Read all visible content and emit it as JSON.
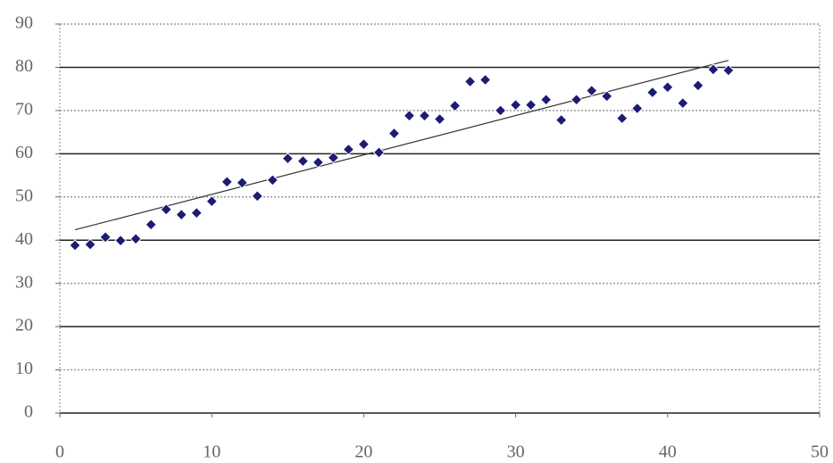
{
  "chart_data": {
    "type": "scatter",
    "x": [
      1,
      2,
      3,
      4,
      5,
      6,
      7,
      8,
      9,
      10,
      11,
      12,
      13,
      14,
      15,
      16,
      17,
      18,
      19,
      20,
      21,
      22,
      23,
      24,
      25,
      26,
      27,
      28,
      29,
      30,
      31,
      32,
      33,
      34,
      35,
      36,
      37,
      38,
      39,
      40,
      41,
      42,
      43,
      44
    ],
    "series": [
      {
        "color": "#1c1c72",
        "values": [
          38.8,
          39,
          40.7,
          39.9,
          40.3,
          43.6,
          47.1,
          45.9,
          46.3,
          49,
          53.5,
          53.3,
          50.2,
          53.9,
          58.9,
          58.3,
          58,
          59.1,
          61,
          62.2,
          60.3,
          64.7,
          68.8,
          68.8,
          68,
          71.1,
          76.7,
          77.1,
          70,
          71.3,
          71.3,
          72.5,
          67.8,
          72.5,
          74.6,
          73.3,
          68.2,
          70.5,
          74.2,
          75.4,
          71.7,
          75.8,
          79.5,
          79.3
        ]
      }
    ],
    "trendline": {
      "x": [
        1,
        44
      ],
      "y": [
        42.4,
        81.6
      ],
      "color": "#333333"
    },
    "xlim": [
      0,
      50
    ],
    "xticks": [
      0,
      10,
      20,
      30,
      40,
      50
    ],
    "ylim": [
      0,
      90
    ],
    "yticks": [
      0,
      10,
      20,
      30,
      40,
      50,
      60,
      70,
      80,
      90
    ],
    "grid": true
  }
}
